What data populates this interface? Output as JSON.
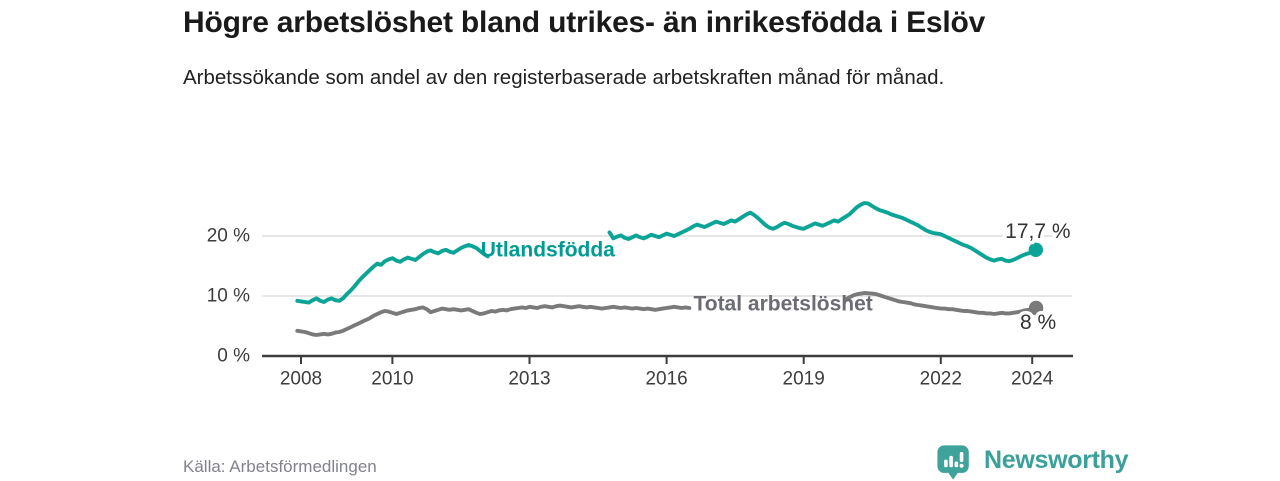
{
  "header": {
    "title": "Högre arbetslöshet bland utrikes- än inrikesfödda i Eslöv",
    "subtitle": "Arbetssökande som andel av den registerbaserade arbetskraften månad för månad."
  },
  "footer": {
    "source": "Källa: Arbetsförmedlingen",
    "brand": "Newsworthy",
    "brand_icon": "newsworthy-speech-bubble-bar-chart-icon"
  },
  "colors": {
    "background": "#ffffff",
    "title_text": "#1a1a1a",
    "body_text": "#222222",
    "axis_text": "#3d3d3d",
    "axis_line": "#3d3d3d",
    "gridline": "#d8d8d8",
    "source_text": "#82828c",
    "brand_teal": "#3aa099",
    "series_teal": "#0ca496",
    "series_gray": "#7a7a7a",
    "gray_label": "#6b6b74",
    "end_label_text": "#333333"
  },
  "chart_data": {
    "type": "line",
    "unit": "%",
    "grid": true,
    "x_axis": {
      "range": [
        2007.9,
        2024.8
      ],
      "ticks": [
        {
          "value": 2008,
          "label": "2008"
        },
        {
          "value": 2010,
          "label": "2010"
        },
        {
          "value": 2013,
          "label": "2013"
        },
        {
          "value": 2016,
          "label": "2016"
        },
        {
          "value": 2019,
          "label": "2019"
        },
        {
          "value": 2022,
          "label": "2022"
        },
        {
          "value": 2024,
          "label": "2024"
        }
      ]
    },
    "y_axis": {
      "range": [
        0,
        27
      ],
      "ticks": [
        {
          "value": 0,
          "label": "0 %"
        },
        {
          "value": 10,
          "label": "10 %"
        },
        {
          "value": 20,
          "label": "20 %"
        }
      ],
      "gridlines": [
        10,
        20
      ]
    },
    "series": [
      {
        "name": "Utlandsfödda",
        "color": "#0ca496",
        "label_color": "#009b92",
        "label_anchor": {
          "x": 2013.4,
          "y": 17.7
        },
        "end_label": "17,7 %",
        "end_label_side": "above",
        "end_value": 17.7,
        "segments": [
          {
            "x_start": 2007.92,
            "x_step": 0.0833,
            "values": [
              9.2,
              9.1,
              9.0,
              8.9,
              9.3,
              9.6,
              9.2,
              9.0,
              9.4,
              9.6,
              9.3,
              9.2,
              9.6,
              10.3,
              10.9,
              11.6,
              12.4,
              13.1,
              13.7,
              14.3,
              14.9,
              15.4,
              15.2,
              15.8,
              16.1,
              16.3,
              15.9,
              15.7,
              16.1,
              16.4,
              16.2,
              16.0,
              16.5,
              17.0,
              17.4,
              17.6,
              17.3,
              17.1,
              17.5,
              17.7,
              17.4,
              17.2,
              17.6,
              18.0,
              18.3,
              18.5,
              18.3,
              18.0,
              17.5,
              17.0,
              16.6
            ]
          },
          {
            "x_start": 2014.75,
            "x_step": 0.0833,
            "values": [
              20.6,
              19.6,
              19.9,
              20.1,
              19.7,
              19.5,
              19.8,
              20.1,
              19.8,
              19.6,
              19.9,
              20.2,
              20.0,
              19.8,
              20.1,
              20.4,
              20.2,
              20.0,
              20.3,
              20.6,
              20.9,
              21.2,
              21.6,
              21.9,
              21.7,
              21.5,
              21.8,
              22.1,
              22.4,
              22.2,
              22.0,
              22.3,
              22.6,
              22.4,
              22.8,
              23.2,
              23.6,
              23.9,
              23.5,
              23.0,
              22.4,
              21.8,
              21.4,
              21.2,
              21.5,
              21.9,
              22.2,
              22.0,
              21.7,
              21.5,
              21.3,
              21.2,
              21.5,
              21.8,
              22.1,
              21.9,
              21.7,
              22.0,
              22.3,
              22.6,
              22.4,
              22.8,
              23.2,
              23.6,
              24.2,
              24.8,
              25.2,
              25.5,
              25.4,
              25.0,
              24.6,
              24.3,
              24.1,
              23.9,
              23.6,
              23.4,
              23.2,
              23.0,
              22.7,
              22.4,
              22.1,
              21.8,
              21.4,
              21.0,
              20.7,
              20.5,
              20.4,
              20.3,
              20.0,
              19.7,
              19.4,
              19.1,
              18.8,
              18.5,
              18.3,
              18.0,
              17.6,
              17.2,
              16.8,
              16.4,
              16.1,
              15.9,
              16.1,
              16.2,
              15.9,
              15.8,
              16.0,
              16.3,
              16.6,
              16.9,
              17.1,
              17.3,
              17.7
            ]
          }
        ]
      },
      {
        "name": "Total arbetslöshet",
        "color": "#7a7a7a",
        "label_color": "#6b6b74",
        "label_anchor": {
          "x": 2018.55,
          "y": 8.7
        },
        "end_label": "8 %",
        "end_label_side": "below",
        "end_value": 8,
        "segments": [
          {
            "x_start": 2007.92,
            "x_step": 0.0833,
            "values": [
              4.2,
              4.1,
              4.0,
              3.8,
              3.6,
              3.5,
              3.6,
              3.7,
              3.6,
              3.7,
              3.9,
              4.0,
              4.2,
              4.5,
              4.8,
              5.1,
              5.4,
              5.7,
              6.0,
              6.3,
              6.7,
              7.0,
              7.3,
              7.5,
              7.4,
              7.2,
              7.0,
              7.2,
              7.4,
              7.6,
              7.7,
              7.8,
              8.0,
              8.1,
              7.8,
              7.3,
              7.5,
              7.7,
              7.9,
              7.8,
              7.7,
              7.8,
              7.7,
              7.6,
              7.7,
              7.8,
              7.5,
              7.2,
              7.0,
              7.1,
              7.3,
              7.5,
              7.4,
              7.6,
              7.7,
              7.6,
              7.8,
              7.9,
              8.0,
              8.1,
              8.0,
              8.2,
              8.1,
              8.0,
              8.2,
              8.3,
              8.2,
              8.1,
              8.3,
              8.4,
              8.3,
              8.2,
              8.1,
              8.2,
              8.3,
              8.2,
              8.1,
              8.2,
              8.1,
              8.0,
              7.9,
              8.0,
              8.1,
              8.2,
              8.1,
              8.0,
              8.1,
              8.0,
              7.9,
              8.0,
              7.9,
              7.8,
              7.9,
              7.8,
              7.7,
              7.8,
              7.9,
              8.0,
              8.1,
              8.2,
              8.1,
              8.0,
              8.1,
              8.0
            ]
          },
          {
            "x_start": 2019.92,
            "x_step": 0.0833,
            "values": [
              9.4,
              9.8,
              10.1,
              10.3,
              10.4,
              10.5,
              10.45,
              10.4,
              10.3,
              10.1,
              9.9,
              9.7,
              9.5,
              9.3,
              9.1,
              9.0,
              8.9,
              8.8,
              8.6,
              8.5,
              8.4,
              8.3,
              8.2,
              8.1,
              8.0,
              7.9,
              7.9,
              7.8,
              7.8,
              7.7,
              7.6,
              7.5,
              7.5,
              7.4,
              7.3,
              7.2,
              7.2,
              7.1,
              7.1,
              7.0,
              7.1,
              7.2,
              7.1,
              7.1,
              7.2,
              7.3,
              7.4,
              7.6,
              7.7,
              7.8,
              8.0
            ]
          }
        ]
      }
    ]
  }
}
